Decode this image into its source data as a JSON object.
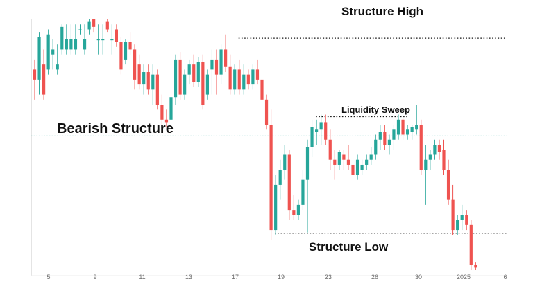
{
  "chart_data": {
    "type": "candlestick",
    "title": "",
    "colors": {
      "up": "#26a69a",
      "down": "#ef5350",
      "midline": "#26a69a",
      "level_line": "#111111"
    },
    "price_range": [
      0,
      100
    ],
    "x_tick_labels": [
      "5",
      "9",
      "11",
      "13",
      "17",
      "19",
      "23",
      "26",
      "30",
      "2025",
      "6"
    ],
    "grid": false,
    "legend": "none",
    "midline_value": 53.5,
    "levels": [
      {
        "name": "structure-high",
        "value": 92.5,
        "from_index": 45,
        "label": "Structure High"
      },
      {
        "name": "liquidity-sweep",
        "value": 61.2,
        "from_index": 62,
        "to_index": 82,
        "label": "Liquidity Sweep"
      },
      {
        "name": "structure-low",
        "value": 14.7,
        "from_index": 53,
        "label": "Structure Low"
      }
    ],
    "annotations": [
      {
        "text": "Bearish Structure"
      }
    ],
    "candles": [
      {
        "o": 80,
        "h": 84,
        "l": 68,
        "c": 76
      },
      {
        "o": 76,
        "h": 95,
        "l": 70,
        "c": 93
      },
      {
        "o": 82,
        "h": 88,
        "l": 68,
        "c": 70
      },
      {
        "o": 80,
        "h": 96,
        "l": 78,
        "c": 94
      },
      {
        "o": 86,
        "h": 92,
        "l": 80,
        "c": 88
      },
      {
        "o": 80,
        "h": 90,
        "l": 78,
        "c": 82
      },
      {
        "o": 88,
        "h": 98,
        "l": 86,
        "c": 97
      },
      {
        "o": 88,
        "h": 98,
        "l": 86,
        "c": 92
      },
      {
        "o": 88,
        "h": 98,
        "l": 86,
        "c": 92
      },
      {
        "o": 88,
        "h": 98,
        "l": 86,
        "c": 92
      },
      {
        "o": 96,
        "h": 98,
        "l": 94,
        "c": 96
      },
      {
        "o": 88,
        "h": 98,
        "l": 86,
        "c": 92
      },
      {
        "o": 96,
        "h": 100,
        "l": 94,
        "c": 99
      },
      {
        "o": 100,
        "h": 100,
        "l": 95,
        "c": 97
      },
      {
        "o": 92,
        "h": 98,
        "l": 86,
        "c": 92
      },
      {
        "o": 92,
        "h": 98,
        "l": 86,
        "c": 92
      },
      {
        "o": 99,
        "h": 100,
        "l": 95,
        "c": 96
      },
      {
        "o": 92,
        "h": 98,
        "l": 86,
        "c": 92
      },
      {
        "o": 96,
        "h": 98,
        "l": 89,
        "c": 91
      },
      {
        "o": 91,
        "h": 93,
        "l": 78,
        "c": 80
      },
      {
        "o": 84,
        "h": 92,
        "l": 82,
        "c": 91
      },
      {
        "o": 91,
        "h": 95,
        "l": 86,
        "c": 88
      },
      {
        "o": 88,
        "h": 90,
        "l": 72,
        "c": 76
      },
      {
        "o": 82,
        "h": 86,
        "l": 72,
        "c": 74
      },
      {
        "o": 74,
        "h": 82,
        "l": 70,
        "c": 79
      },
      {
        "o": 79,
        "h": 82,
        "l": 70,
        "c": 72
      },
      {
        "o": 72,
        "h": 82,
        "l": 66,
        "c": 78
      },
      {
        "o": 78,
        "h": 80,
        "l": 64,
        "c": 66
      },
      {
        "o": 66,
        "h": 70,
        "l": 58,
        "c": 60
      },
      {
        "o": 60,
        "h": 64,
        "l": 57,
        "c": 59
      },
      {
        "o": 60,
        "h": 70,
        "l": 58,
        "c": 69
      },
      {
        "o": 69,
        "h": 86,
        "l": 66,
        "c": 84
      },
      {
        "o": 84,
        "h": 87,
        "l": 68,
        "c": 70
      },
      {
        "o": 70,
        "h": 80,
        "l": 68,
        "c": 78
      },
      {
        "o": 78,
        "h": 84,
        "l": 74,
        "c": 82
      },
      {
        "o": 82,
        "h": 86,
        "l": 73,
        "c": 75
      },
      {
        "o": 75,
        "h": 85,
        "l": 73,
        "c": 83
      },
      {
        "o": 83,
        "h": 86,
        "l": 64,
        "c": 66
      },
      {
        "o": 70,
        "h": 80,
        "l": 68,
        "c": 78
      },
      {
        "o": 80,
        "h": 88,
        "l": 70,
        "c": 84
      },
      {
        "o": 84,
        "h": 88,
        "l": 70,
        "c": 78
      },
      {
        "o": 78,
        "h": 90,
        "l": 74,
        "c": 88
      },
      {
        "o": 88,
        "h": 94,
        "l": 79,
        "c": 81
      },
      {
        "o": 81,
        "h": 86,
        "l": 70,
        "c": 72
      },
      {
        "o": 72,
        "h": 82,
        "l": 70,
        "c": 80
      },
      {
        "o": 80,
        "h": 84,
        "l": 70,
        "c": 72
      },
      {
        "o": 72,
        "h": 82,
        "l": 70,
        "c": 78
      },
      {
        "o": 78,
        "h": 80,
        "l": 72,
        "c": 74
      },
      {
        "o": 74,
        "h": 82,
        "l": 72,
        "c": 80
      },
      {
        "o": 80,
        "h": 84,
        "l": 74,
        "c": 76
      },
      {
        "o": 76,
        "h": 80,
        "l": 64,
        "c": 68
      },
      {
        "o": 68,
        "h": 70,
        "l": 56,
        "c": 58
      },
      {
        "o": 58,
        "h": 64,
        "l": 12,
        "c": 16
      },
      {
        "o": 16,
        "h": 38,
        "l": 14,
        "c": 34
      },
      {
        "o": 34,
        "h": 44,
        "l": 28,
        "c": 40
      },
      {
        "o": 40,
        "h": 50,
        "l": 36,
        "c": 46
      },
      {
        "o": 46,
        "h": 48,
        "l": 20,
        "c": 24
      },
      {
        "o": 24,
        "h": 30,
        "l": 20,
        "c": 22
      },
      {
        "o": 22,
        "h": 28,
        "l": 20,
        "c": 26
      },
      {
        "o": 26,
        "h": 40,
        "l": 24,
        "c": 36
      },
      {
        "o": 36,
        "h": 52,
        "l": 15,
        "c": 49
      },
      {
        "o": 49,
        "h": 60,
        "l": 45,
        "c": 57
      },
      {
        "o": 55,
        "h": 60,
        "l": 50,
        "c": 56
      },
      {
        "o": 56,
        "h": 62,
        "l": 50,
        "c": 59
      },
      {
        "o": 59,
        "h": 62,
        "l": 50,
        "c": 52
      },
      {
        "o": 52,
        "h": 56,
        "l": 40,
        "c": 44
      },
      {
        "o": 44,
        "h": 48,
        "l": 36,
        "c": 42
      },
      {
        "o": 42,
        "h": 48,
        "l": 40,
        "c": 47
      },
      {
        "o": 46,
        "h": 48,
        "l": 40,
        "c": 44
      },
      {
        "o": 44,
        "h": 50,
        "l": 40,
        "c": 42
      },
      {
        "o": 42,
        "h": 46,
        "l": 36,
        "c": 38
      },
      {
        "o": 38,
        "h": 46,
        "l": 36,
        "c": 44
      },
      {
        "o": 40,
        "h": 44,
        "l": 38,
        "c": 42
      },
      {
        "o": 42,
        "h": 46,
        "l": 40,
        "c": 44
      },
      {
        "o": 44,
        "h": 49,
        "l": 42,
        "c": 46
      },
      {
        "o": 46,
        "h": 54,
        "l": 44,
        "c": 52
      },
      {
        "o": 52,
        "h": 58,
        "l": 48,
        "c": 55
      },
      {
        "o": 55,
        "h": 58,
        "l": 48,
        "c": 50
      },
      {
        "o": 50,
        "h": 54,
        "l": 46,
        "c": 52
      },
      {
        "o": 52,
        "h": 58,
        "l": 48,
        "c": 56
      },
      {
        "o": 54,
        "h": 62,
        "l": 52,
        "c": 60
      },
      {
        "o": 60,
        "h": 61,
        "l": 52,
        "c": 54
      },
      {
        "o": 54,
        "h": 58,
        "l": 52,
        "c": 56
      },
      {
        "o": 55,
        "h": 58,
        "l": 52,
        "c": 57
      },
      {
        "o": 56,
        "h": 66,
        "l": 54,
        "c": 58
      },
      {
        "o": 58,
        "h": 60,
        "l": 38,
        "c": 40
      },
      {
        "o": 40,
        "h": 50,
        "l": 26,
        "c": 44
      },
      {
        "o": 44,
        "h": 48,
        "l": 40,
        "c": 46
      },
      {
        "o": 46,
        "h": 52,
        "l": 44,
        "c": 50
      },
      {
        "o": 50,
        "h": 52,
        "l": 44,
        "c": 47
      },
      {
        "o": 48,
        "h": 52,
        "l": 38,
        "c": 40
      },
      {
        "o": 40,
        "h": 44,
        "l": 26,
        "c": 28
      },
      {
        "o": 28,
        "h": 34,
        "l": 14,
        "c": 16
      },
      {
        "o": 16,
        "h": 22,
        "l": 14,
        "c": 20
      },
      {
        "o": 20,
        "h": 26,
        "l": 16,
        "c": 22
      },
      {
        "o": 22,
        "h": 24,
        "l": 16,
        "c": 18
      },
      {
        "o": 18,
        "h": 20,
        "l": 0,
        "c": 2
      },
      {
        "o": 2,
        "h": 3,
        "l": 0,
        "c": 1
      }
    ]
  },
  "labels": {
    "structure_high": "Structure High",
    "bearish_structure": "Bearish Structure",
    "liquidity_sweep": "Liquidity Sweep",
    "structure_low": "Structure Low"
  }
}
